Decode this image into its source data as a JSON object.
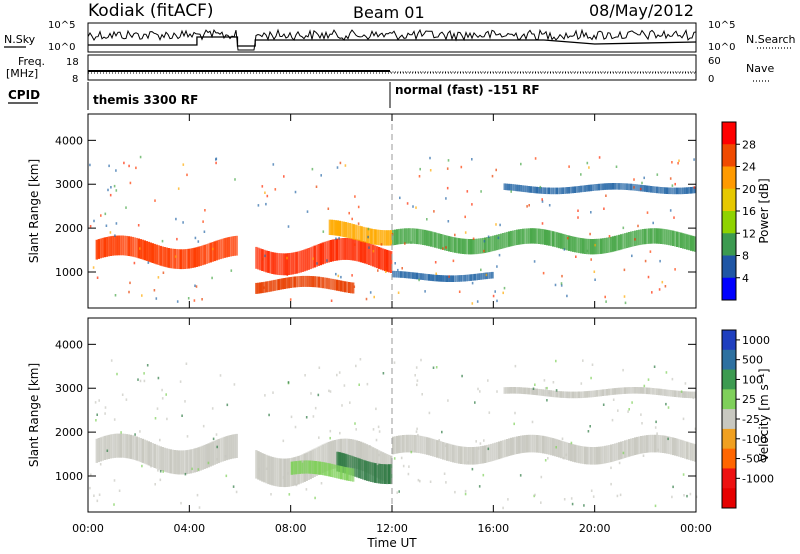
{
  "header": {
    "station": "Kodiak (fitACF)",
    "beam": "Beam 01",
    "date": "08/May/2012"
  },
  "top_panels": {
    "nsky_label": "N.Sky",
    "nsearch_label": "N.Search",
    "nsky_ticks": [
      "10^5",
      "10^0"
    ],
    "nsearch_ticks": [
      "10^5",
      "10^0"
    ],
    "freq_label": "Freq.",
    "freq_unit": "[MHz]",
    "freq_ticks": [
      "18",
      "8"
    ],
    "nave_label": "Nave",
    "nave_ticks": [
      "60",
      "0"
    ],
    "cpid_label": "CPID",
    "cpid_segments": [
      {
        "label": "themis 3300 RF",
        "start_hour": 0
      },
      {
        "label": "normal (fast) -151 RF",
        "start_hour": 12
      }
    ]
  },
  "x_axis": {
    "label": "Time UT",
    "ticks": [
      "00:00",
      "04:00",
      "08:00",
      "12:00",
      "16:00",
      "20:00",
      "00:00"
    ],
    "range_hours": [
      0,
      24
    ]
  },
  "power_colorbar": {
    "label": "Power [dB]",
    "ticks": [
      "28",
      "24",
      "20",
      "16",
      "12",
      "8",
      "4"
    ],
    "colors": [
      "#ff0000",
      "#f04a00",
      "#ff9a00",
      "#e6c800",
      "#8fd300",
      "#3c9a50",
      "#1f56a5",
      "#0000ff"
    ]
  },
  "velocity_colorbar": {
    "label": "Velocity [m s⁻¹]",
    "ticks": [
      "1000",
      "500",
      "100",
      "25",
      "-25",
      "-100",
      "-500",
      "-1000"
    ],
    "colors": [
      "#1f3fbf",
      "#2d70a0",
      "#3c9a50",
      "#7fd05a",
      "#c8c8c0",
      "#f0a020",
      "#ff6600",
      "#ee1111",
      "#e60000"
    ]
  },
  "chart_data": [
    {
      "type": "heatmap",
      "ylabel": "Slant Range [km]",
      "yticks": [
        "4000",
        "3000",
        "2000",
        "1000"
      ],
      "ylim": [
        180,
        4600
      ],
      "xlim": [
        0,
        24
      ],
      "description_bands": [
        {
          "x0": 0.3,
          "x1": 5.9,
          "y_center": 1450,
          "width": 450,
          "color": "#ff3c00"
        },
        {
          "x0": 6.6,
          "x1": 12.0,
          "y_center": 1350,
          "width": 500,
          "color": "#ff2a00"
        },
        {
          "x0": 9.5,
          "x1": 12.0,
          "y_center": 1900,
          "width": 350,
          "color": "#ffaa00"
        },
        {
          "x0": 6.6,
          "x1": 10.5,
          "y_center": 700,
          "width": 250,
          "color": "#e84000"
        },
        {
          "x0": 12.0,
          "x1": 24.0,
          "y_center": 1700,
          "width": 350,
          "color": "#4aa84a"
        },
        {
          "x0": 12.0,
          "x1": 16.0,
          "y_center": 900,
          "width": 150,
          "color": "#2a6aa8"
        },
        {
          "x0": 16.4,
          "x1": 24.0,
          "y_center": 2900,
          "width": 150,
          "color": "#2a6aa8"
        }
      ]
    },
    {
      "type": "heatmap",
      "ylabel": "Slant Range [km]",
      "yticks": [
        "4000",
        "3000",
        "2000",
        "1000"
      ],
      "ylim": [
        180,
        4600
      ],
      "xlim": [
        0,
        24
      ],
      "description_bands": [
        {
          "x0": 0.3,
          "x1": 5.9,
          "y_center": 1500,
          "width": 550,
          "color": "#c8c8c0"
        },
        {
          "x0": 6.6,
          "x1": 12.0,
          "y_center": 1300,
          "width": 650,
          "color": "#c8c8c0"
        },
        {
          "x0": 9.8,
          "x1": 12.0,
          "y_center": 1200,
          "width": 450,
          "color": "#2f7a44"
        },
        {
          "x0": 8.0,
          "x1": 10.5,
          "y_center": 1100,
          "width": 300,
          "color": "#7fd05a"
        },
        {
          "x0": 12.0,
          "x1": 24.0,
          "y_center": 1600,
          "width": 400,
          "color": "#c8c8c0"
        },
        {
          "x0": 16.4,
          "x1": 24.0,
          "y_center": 2900,
          "width": 150,
          "color": "#c8c8c0"
        }
      ]
    }
  ]
}
